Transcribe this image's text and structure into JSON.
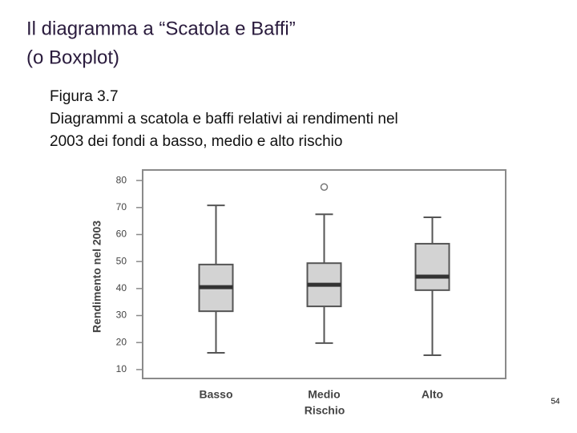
{
  "slide": {
    "title": [
      "Il diagramma a “Scatola e Baffi”",
      "(o Boxplot)"
    ],
    "caption": [
      "Figura 3.7",
      "Diagrammi a scatola e baffi relativi ai rendimenti nel",
      "2003 dei fondi a basso, medio e alto rischio"
    ],
    "page_number": "54"
  },
  "chart_data": {
    "type": "box",
    "x_label": "Rischio",
    "y_label": "Rendimento nel 2003",
    "categories": [
      "Basso",
      "Medio",
      "Alto"
    ],
    "min": [
      16.2,
      19.8,
      15.3
    ],
    "q1": [
      31.6,
      33.4,
      39.4
    ],
    "median": [
      40.5,
      41.4,
      44.4
    ],
    "q3": [
      48.9,
      49.4,
      56.6
    ],
    "max": [
      70.8,
      67.5,
      66.4
    ],
    "outliers": [
      [],
      [
        77.6
      ],
      []
    ],
    "color": "#d3d3d3",
    "ylim": [
      6.7,
      83.9
    ],
    "yticks": [
      10,
      20,
      30,
      40,
      50,
      60,
      70,
      80
    ]
  }
}
